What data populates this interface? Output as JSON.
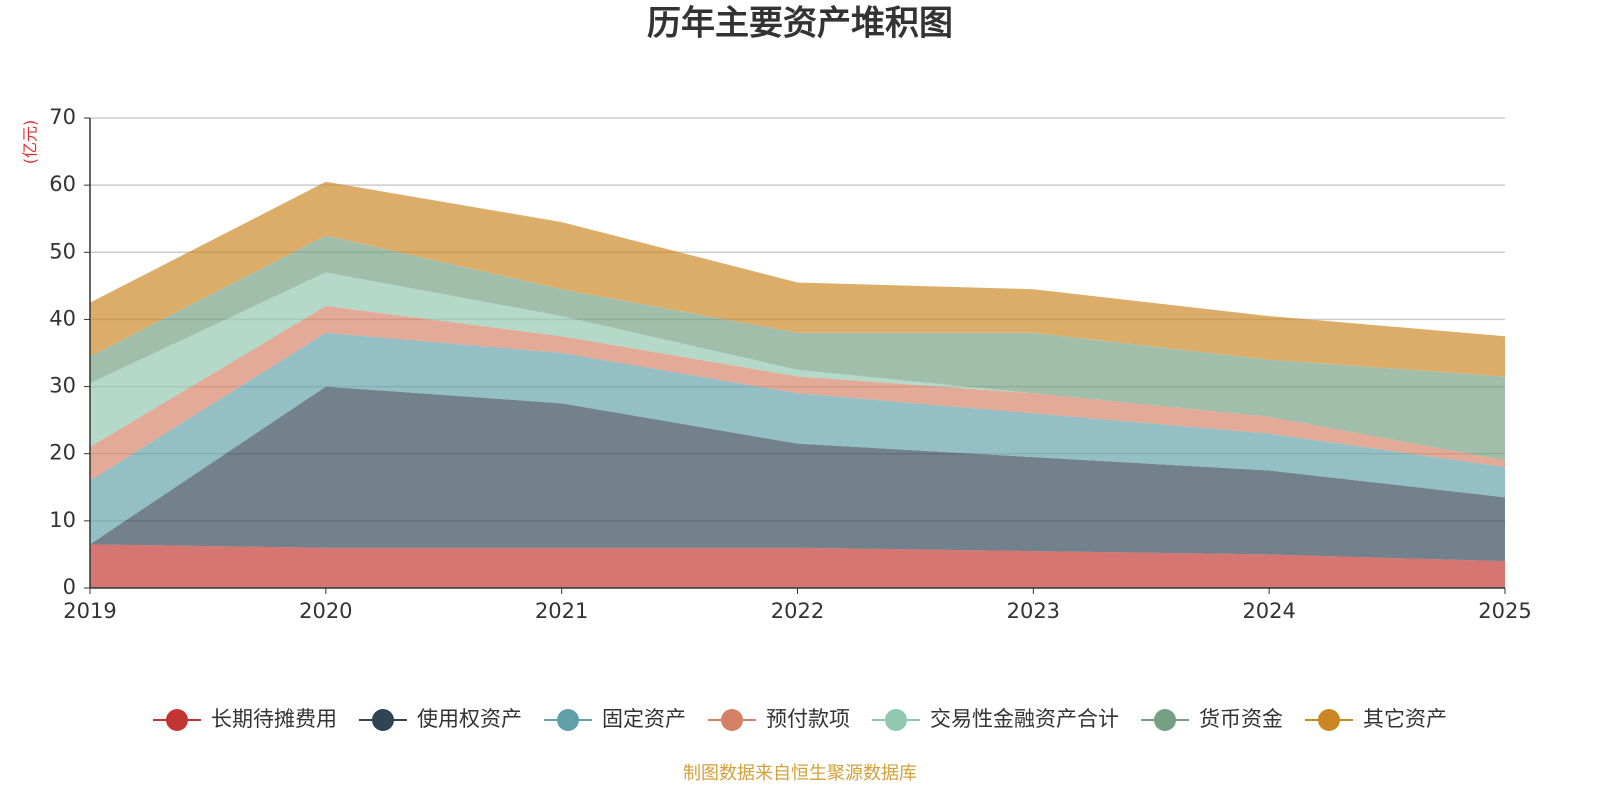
{
  "chart_data": {
    "type": "area",
    "title": "历年主要资产堆积图",
    "y_label": "(亿元)",
    "source": "制图数据来自恒生聚源数据库",
    "categories": [
      "2019",
      "2020",
      "2021",
      "2022",
      "2023",
      "2024",
      "2025"
    ],
    "stacked": true,
    "grid": true,
    "legend": "bottom",
    "ylim": [
      0,
      70
    ],
    "yticks": [
      0,
      10,
      20,
      30,
      40,
      50,
      60,
      70
    ],
    "series": [
      {
        "name": "长期待摊费用",
        "color": "#c23531",
        "values": [
          6.5,
          6,
          6,
          6,
          5.5,
          5,
          4
        ]
      },
      {
        "name": "使用权资产",
        "color": "#2f4554",
        "values": [
          0,
          24,
          21.5,
          15.5,
          14,
          12.5,
          9.5
        ]
      },
      {
        "name": "固定资产",
        "color": "#61a0a8",
        "values": [
          9.5,
          8,
          7.5,
          7.5,
          6.5,
          5.5,
          4.5
        ]
      },
      {
        "name": "预付款项",
        "color": "#d48265",
        "values": [
          5,
          4,
          2.5,
          2.5,
          3,
          2.5,
          1
        ]
      },
      {
        "name": "交易性金融资产合计",
        "color": "#91c7ae",
        "values": [
          9.5,
          5,
          3,
          1,
          0,
          0,
          0
        ]
      },
      {
        "name": "货币资金",
        "color": "#749f83",
        "values": [
          4,
          5.5,
          4,
          5.5,
          9,
          8.5,
          12.5
        ]
      },
      {
        "name": "其它资产",
        "color": "#ca8622",
        "values": [
          8,
          8,
          10,
          7.5,
          6.5,
          6.5,
          6
        ]
      }
    ]
  }
}
